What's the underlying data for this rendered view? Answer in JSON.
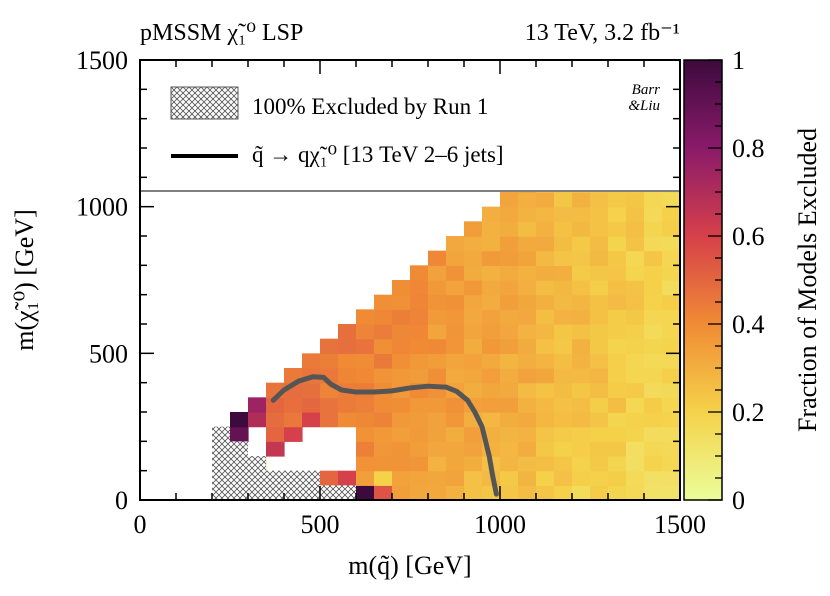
{
  "chart_data": {
    "type": "heatmap",
    "title_left": "pMSSM χ̃₁⁰ LSP",
    "title_right": "13 TeV, 3.2 fb⁻¹",
    "xlabel": "m(q̃) [GeV]",
    "ylabel": "m(χ̃₁⁰) [GeV]",
    "zlabel": "Fraction of Models Excluded",
    "xlim": [
      0,
      1500
    ],
    "ylim": [
      0,
      1500
    ],
    "zlim": [
      0,
      1
    ],
    "x_ticks": [
      0,
      500,
      1000,
      1500
    ],
    "y_ticks": [
      0,
      500,
      1000,
      1500
    ],
    "z_ticks": [
      0,
      0.2,
      0.4,
      0.6,
      0.8,
      1
    ],
    "x_tick_labels": [
      "0",
      "500",
      "1000",
      "1500"
    ],
    "y_tick_labels": [
      "0",
      "500",
      "1000",
      "1500"
    ],
    "z_tick_labels": [
      "0",
      "0.2",
      "0.4",
      "0.6",
      "0.8",
      "1"
    ],
    "bin_width": 50,
    "bin_height": 50,
    "special_cells": [
      {
        "x": 250,
        "y": 250,
        "z": 1.0
      },
      {
        "x": 250,
        "y": 200,
        "z": 0.9
      },
      {
        "x": 300,
        "y": 300,
        "z": 0.75
      },
      {
        "x": 300,
        "y": 250,
        "z": 0.7
      },
      {
        "x": 350,
        "y": 150,
        "z": 0.65
      },
      {
        "x": 400,
        "y": 200,
        "z": 0.6
      },
      {
        "x": 450,
        "y": 250,
        "z": 0.6
      },
      {
        "x": 300,
        "y": 100,
        "z": 0.1
      },
      {
        "x": 500,
        "y": 50,
        "z": 0.5
      },
      {
        "x": 550,
        "y": 50,
        "z": 0.6
      },
      {
        "x": 600,
        "y": 0,
        "z": 1.0
      },
      {
        "x": 650,
        "y": 50,
        "z": 0.2
      },
      {
        "x": 550,
        "y": 0,
        "z": 0.15
      },
      {
        "x": 650,
        "y": 0,
        "z": 0.55
      },
      {
        "x": 350,
        "y": 200,
        "z": 0.5
      }
    ],
    "excluded_run1_region": {
      "x_min": 200,
      "x_max": 600,
      "y_min": 0,
      "y_max": 250
    },
    "contour_label": "q̃ → qχ̃₁⁰ [13 TeV 2–6 jets]",
    "contour": {
      "x": [
        370,
        400,
        440,
        480,
        510,
        530,
        560,
        600,
        650,
        700,
        750,
        800,
        850,
        880,
        910,
        930,
        950,
        960,
        970,
        980,
        990
      ],
      "y": [
        340,
        375,
        405,
        420,
        418,
        395,
        375,
        368,
        368,
        372,
        382,
        388,
        385,
        370,
        340,
        300,
        250,
        200,
        150,
        80,
        20
      ]
    },
    "legend": {
      "items": [
        "100% Excluded by Run 1",
        "q̃ → qχ̃₁⁰ [13 TeV 2–6 jets]"
      ],
      "author_line1": "Barr",
      "author_line2": "&Liu",
      "position": "top"
    },
    "colors": {
      "scale": [
        "#ebfd9a",
        "#f5d24a",
        "#f08b35",
        "#d6404a",
        "#8a1a6a",
        "#3d0a3d"
      ],
      "line": "#555555",
      "frame": "#000000",
      "legend_divider": "#808080"
    }
  }
}
